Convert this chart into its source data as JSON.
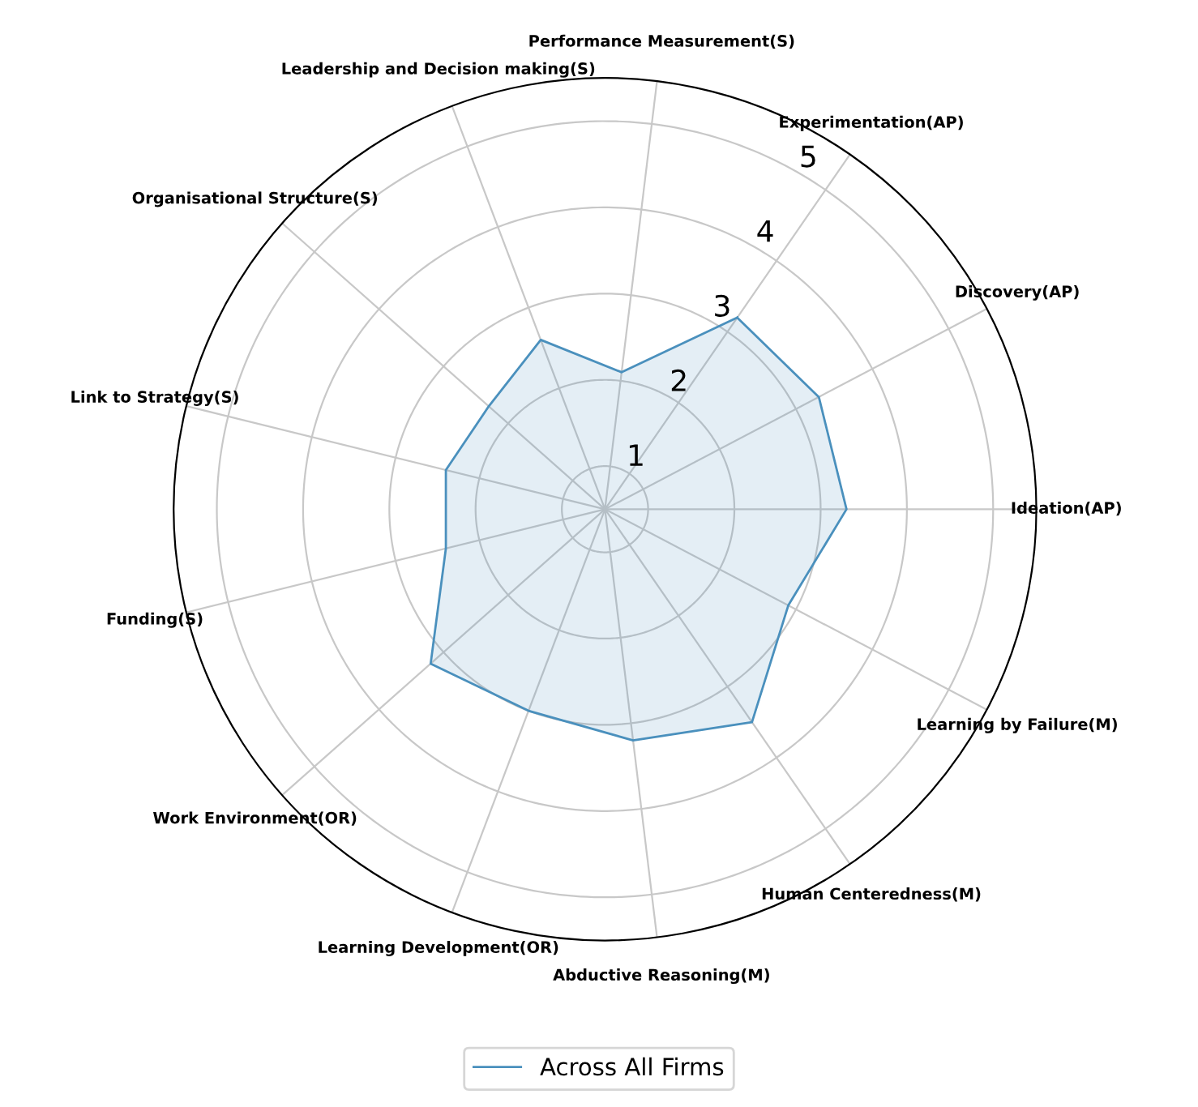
{
  "chart_data": {
    "type": "radar",
    "categories": [
      "Experimentation(AP)",
      "Discovery(AP)",
      "Ideation(AP)",
      "Learning by Failure(M)",
      "Human Centeredness(M)",
      "Abductive Reasoning(M)",
      "Learning Development(OR)",
      "Work Environment(OR)",
      "Funding(S)",
      "Link to Strategy(S)",
      "Organisational Structure(S)",
      "Leadership and Decision making(S)",
      "Performance Measurement(S)"
    ],
    "series": [
      {
        "name": "Across All Firms",
        "color": "#4a90bd",
        "values": [
          3.2,
          3.3,
          3.3,
          2.9,
          3.5,
          3.2,
          3.0,
          3.2,
          2.4,
          2.4,
          2.3,
          2.6,
          2.1
        ]
      }
    ],
    "ylim": [
      0.5,
      5.5
    ],
    "yticks": [
      1,
      2,
      3,
      4,
      5
    ],
    "grid": true,
    "legend": "bottom"
  }
}
